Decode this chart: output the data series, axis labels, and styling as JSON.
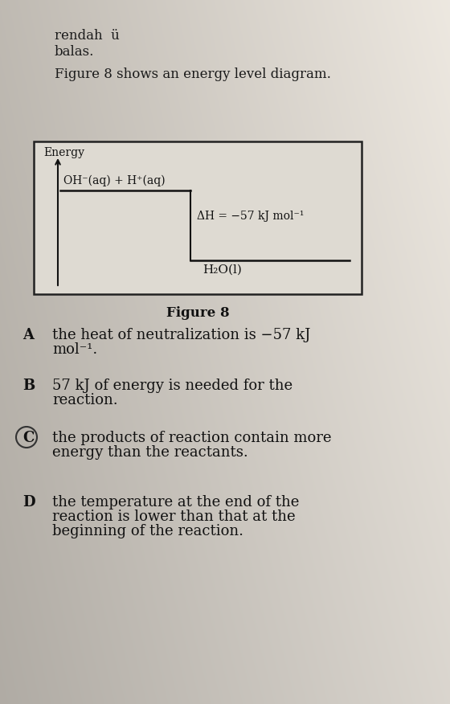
{
  "bg_color_left": "#c8c4bc",
  "bg_color_right": "#e8e4dc",
  "bg_color_top": "#d0ccc4",
  "figure_label": "Figure 8",
  "diagram": {
    "box_facecolor": "#e0dcd4",
    "energy_label": "Energy",
    "reactant_label": "OH⁻(aq) + H⁺(aq)",
    "product_label": "H₂O(l)",
    "delta_h_label": "ΔH = −57 kJ mol⁻¹"
  },
  "options": [
    {
      "letter": "A",
      "text1": "the heat of neutralization is −57 kJ",
      "text2": "mol⁻¹."
    },
    {
      "letter": "B",
      "text1": "57 kJ of energy is needed for the",
      "text2": "reaction."
    },
    {
      "letter": "C",
      "text1": "the products of reaction contain more",
      "text2": "energy than the reactants.",
      "circled": true
    },
    {
      "letter": "D",
      "text1": "the temperature at the end of the",
      "text2": "reaction is lower than that at the",
      "text3": "beginning of the reaction."
    }
  ]
}
